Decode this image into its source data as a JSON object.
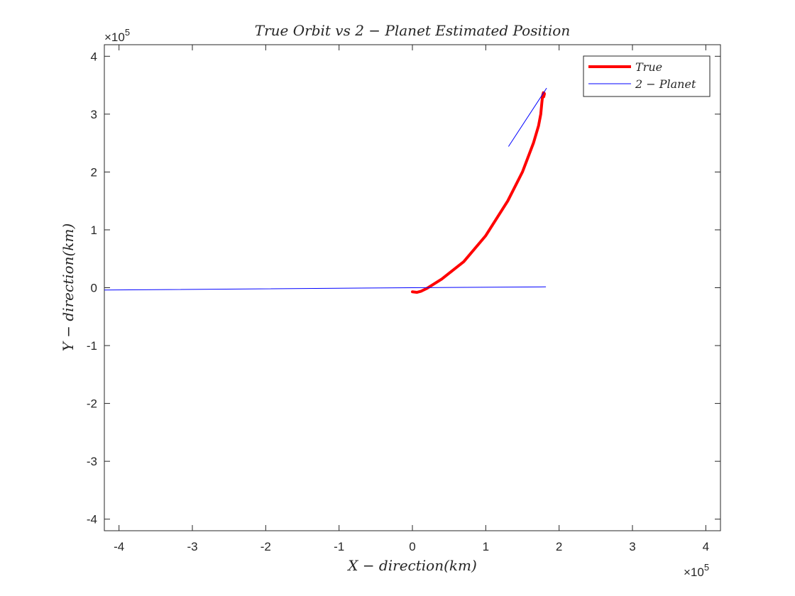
{
  "chart_data": {
    "type": "line",
    "title": "True Orbit vs 2 − Planet Estimated Position",
    "xlabel": "X − direction(km)",
    "ylabel": "Y − direction(km)",
    "xlim": [
      -420000,
      420000
    ],
    "ylim": [
      -420000,
      420000
    ],
    "x_exponent": "×10",
    "x_exponent_power": "5",
    "y_exponent": "×10",
    "y_exponent_power": "5",
    "tick_scale": 100000,
    "xticks": [
      -4,
      -3,
      -2,
      -1,
      0,
      1,
      2,
      3,
      4
    ],
    "yticks": [
      -4,
      -3,
      -2,
      -1,
      0,
      1,
      2,
      3,
      4
    ],
    "grid": false,
    "legend_position": "top-right",
    "colors": {
      "true": "#ff0000",
      "planet": "#0000ff"
    },
    "series": [
      {
        "name": "True",
        "legend_label": "True",
        "color": "#ff0000",
        "x": [
          0,
          6000,
          12000,
          20000,
          40000,
          70000,
          100000,
          130000,
          150000,
          165000,
          172000,
          175000,
          176500,
          177500,
          178500,
          179500,
          180000,
          179000
        ],
        "y": [
          -7000,
          -8000,
          -6000,
          -1000,
          15000,
          45000,
          90000,
          150000,
          200000,
          250000,
          280000,
          300000,
          320000,
          332000,
          337000,
          336500,
          335000,
          330000
        ]
      },
      {
        "name": "2 − Planet",
        "legend_label": "2 − Planet",
        "color": "#0000ff",
        "segments": [
          {
            "x": [
              -420000,
              0,
              182000
            ],
            "y": [
              -4000,
              0,
              1500
            ]
          },
          {
            "x": [
              131000,
              183000
            ],
            "y": [
              244000,
              345000
            ]
          }
        ]
      }
    ]
  }
}
